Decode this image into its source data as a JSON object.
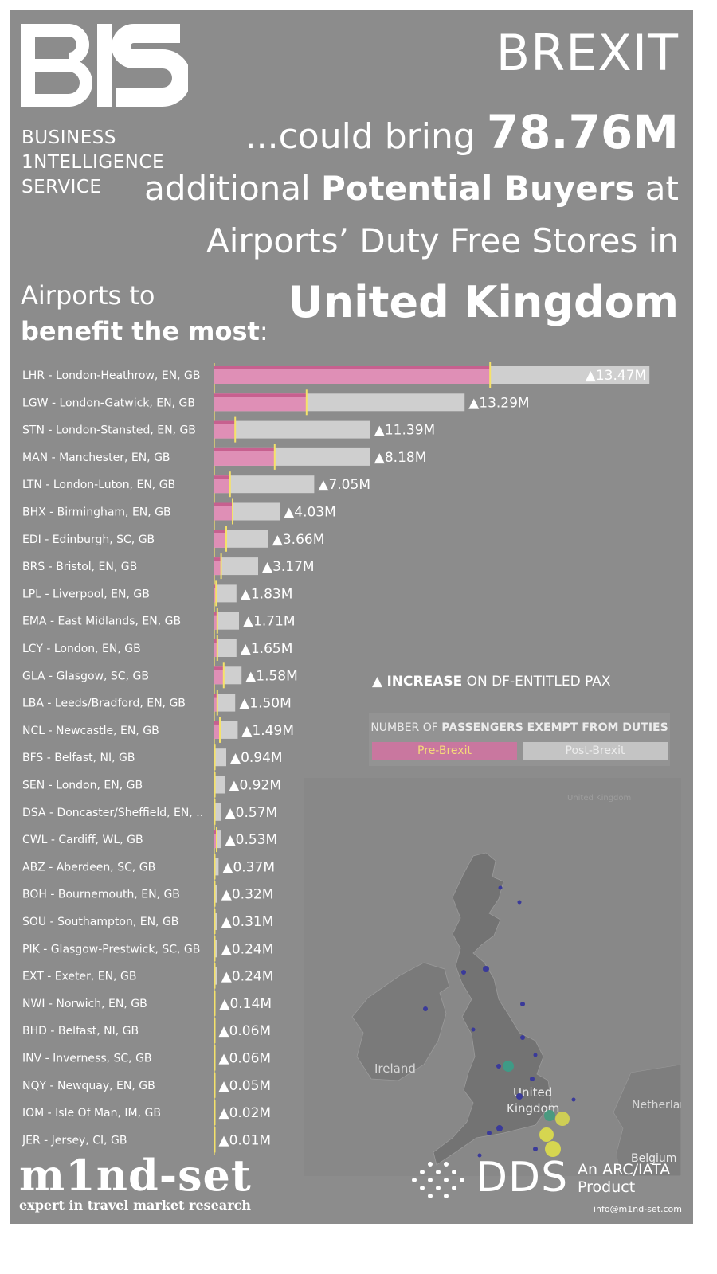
{
  "header": {
    "logo_text": "B1S",
    "org_lines": [
      "BUSINESS",
      "1NTELLIGENCE",
      "SERVICE"
    ],
    "title": "BREXIT",
    "line2_pre": "...could bring ",
    "line2_value": "78.76M",
    "line3_pre": "additional ",
    "line3_bold": "Potential Buyers",
    "line3_post": " at",
    "line4": "Airports’ Duty Free Stores in",
    "country": "United Kingdom",
    "sub_line1": "Airports to",
    "sub_line2_bold": "benefit the most",
    "sub_line2_post": ":"
  },
  "legend": {
    "increase_prefix": "▲ ",
    "increase_bold": "INCREASE",
    "increase_rest": " ON DF-ENTITLED PAX",
    "title_pre": "NUMBER OF ",
    "title_bold": "PASSENGERS EXEMPT FROM DUTIES",
    "pre_label": "Pre-Brexit",
    "post_label": "Post-Brexit"
  },
  "colors": {
    "background": "#8c8c8c",
    "pre_brexit": "#df8fb6",
    "pre_brexit_edge": "#c7608f",
    "post_brexit": "#cfcfcf",
    "marker": "#f5e26a",
    "map_land": "#7e7e7e",
    "map_uk": "#737373"
  },
  "chart_data": {
    "type": "bar",
    "categories": [
      "LHR - London-Heathrow, EN, GB",
      "LGW - London-Gatwick, EN, GB",
      "STN - London-Stansted, EN, GB",
      "MAN - Manchester, EN, GB",
      "LTN - London-Luton, EN, GB",
      "BHX - Birmingham, EN, GB",
      "EDI - Edinburgh, SC, GB",
      "BRS - Bristol, EN, GB",
      "LPL - Liverpool, EN, GB",
      "EMA - East Midlands, EN, GB",
      "LCY - London, EN, GB",
      "GLA - Glasgow, SC, GB",
      "LBA - Leeds/Bradford, EN, GB",
      "NCL - Newcastle, EN, GB",
      "BFS - Belfast, NI, GB",
      "SEN - London, EN, GB",
      "DSA - Doncaster/Sheffield, EN, ..",
      "CWL - Cardiff, WL, GB",
      "ABZ - Aberdeen, SC, GB",
      "BOH - Bournemouth, EN, GB",
      "SOU - Southampton, EN, GB",
      "PIK - Glasgow-Prestwick, SC, GB",
      "EXT - Exeter, EN, GB",
      "NWI - Norwich, EN, GB",
      "BHD - Belfast, NI, GB",
      "INV - Inverness, SC, GB",
      "NQY - Newquay, EN, GB",
      "IOM - Isle Of Man, IM, GB",
      "JER - Jersey, CI, GB"
    ],
    "series": [
      {
        "name": "Pre-Brexit",
        "values": [
          21.7,
          7.3,
          1.7,
          4.8,
          1.3,
          1.5,
          1.0,
          0.6,
          0.2,
          0.3,
          0.3,
          0.8,
          0.3,
          0.5,
          0.1,
          0.1,
          0.05,
          0.25,
          0.05,
          0.05,
          0.05,
          0.05,
          0.05,
          0.03,
          0.02,
          0.02,
          0.02,
          0.01,
          0.01
        ]
      },
      {
        "name": "Post-Brexit",
        "values": [
          34.2,
          19.7,
          12.3,
          12.3,
          7.9,
          5.2,
          4.3,
          3.5,
          1.8,
          2.0,
          1.8,
          2.2,
          1.7,
          1.9,
          1.0,
          0.9,
          0.6,
          0.6,
          0.4,
          0.3,
          0.3,
          0.3,
          0.3,
          0.15,
          0.07,
          0.07,
          0.06,
          0.03,
          0.02
        ]
      }
    ],
    "increase_labels": [
      "▲13.47M",
      "▲13.29M",
      "▲11.39M",
      "▲8.18M",
      "▲7.05M",
      "▲4.03M",
      "▲3.66M",
      "▲3.17M",
      "▲1.83M",
      "▲1.71M",
      "▲1.65M",
      "▲1.58M",
      "▲1.50M",
      "▲1.49M",
      "▲0.94M",
      "▲0.92M",
      "▲0.57M",
      "▲0.53M",
      "▲0.37M",
      "▲0.32M",
      "▲0.31M",
      "▲0.24M",
      "▲0.24M",
      "▲0.14M",
      "▲0.06M",
      "▲0.06M",
      "▲0.05M",
      "▲0.02M",
      "▲0.01M"
    ],
    "increase_values": [
      13.47,
      13.29,
      11.39,
      8.18,
      7.05,
      4.03,
      3.66,
      3.17,
      1.83,
      1.71,
      1.65,
      1.58,
      1.5,
      1.49,
      0.94,
      0.92,
      0.57,
      0.53,
      0.37,
      0.32,
      0.31,
      0.24,
      0.24,
      0.14,
      0.06,
      0.06,
      0.05,
      0.02,
      0.01
    ],
    "xlim": [
      0,
      34.5
    ],
    "orientation": "horizontal",
    "grid": false,
    "legend": "right"
  },
  "map": {
    "label_ireland": "Ireland",
    "label_uk_line1": "United",
    "label_uk_line2": "Kingdom",
    "label_netherlands": "Netherlands",
    "label_belgium": "Belgium",
    "label_faint": "United Kingdom"
  },
  "footer": {
    "mindset_word": "m1nd-set",
    "mindset_tagline": "expert in travel market research",
    "dds_word": "DDS",
    "dds_line1": "An ARC/IATA",
    "dds_line2": "Product",
    "email": "info@m1nd-set.com"
  }
}
